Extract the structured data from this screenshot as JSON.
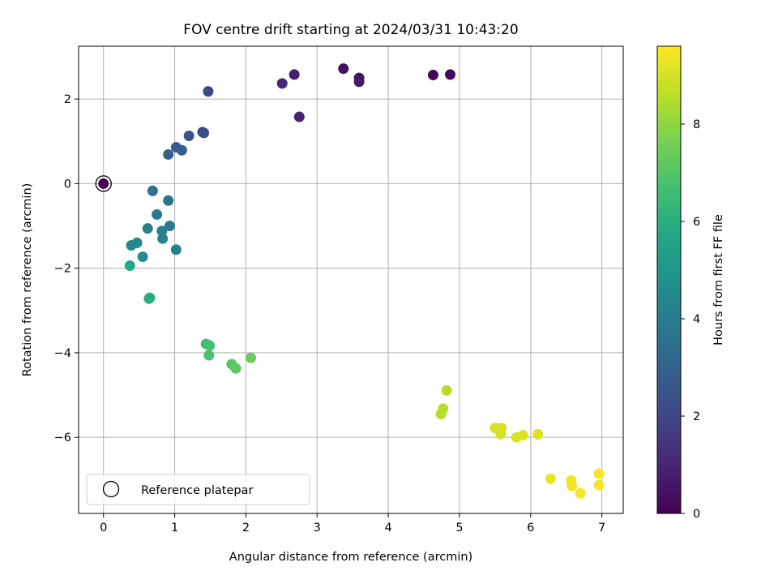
{
  "chart_data": {
    "type": "scatter",
    "title": "FOV centre drift starting at 2024/03/31 10:43:20",
    "xlabel": "Angular distance from reference (arcmin)",
    "ylabel": "Rotation from reference (arcmin)",
    "xlim": [
      -0.35,
      7.3
    ],
    "ylim": [
      -7.8,
      3.25
    ],
    "xticks": [
      0,
      1,
      2,
      3,
      4,
      5,
      6,
      7
    ],
    "yticks": [
      -6,
      -4,
      -2,
      0,
      2
    ],
    "grid": true,
    "legend": {
      "position": "bottom-left",
      "entries": [
        "Reference platepar"
      ]
    },
    "colorbar": {
      "label": "Hours from first FF file",
      "range": [
        0,
        9.6
      ],
      "ticks": [
        0,
        2,
        4,
        6,
        8
      ],
      "colormap": "viridis"
    },
    "reference_point": {
      "x": 0,
      "y": 0,
      "label": "Reference platepar"
    },
    "points": [
      {
        "x": 4.63,
        "y": 2.57,
        "t": 0.1
      },
      {
        "x": 4.87,
        "y": 2.58,
        "t": 0.2
      },
      {
        "x": 3.37,
        "y": 2.72,
        "t": 0.4
      },
      {
        "x": 3.59,
        "y": 2.5,
        "t": 0.5
      },
      {
        "x": 3.59,
        "y": 2.41,
        "t": 0.6
      },
      {
        "x": 2.68,
        "y": 2.58,
        "t": 0.8
      },
      {
        "x": 2.75,
        "y": 1.58,
        "t": 0.9
      },
      {
        "x": 2.51,
        "y": 2.37,
        "t": 1.1
      },
      {
        "x": 1.47,
        "y": 2.18,
        "t": 2.0
      },
      {
        "x": 1.39,
        "y": 1.22,
        "t": 2.2
      },
      {
        "x": 1.41,
        "y": 1.2,
        "t": 2.3
      },
      {
        "x": 1.2,
        "y": 1.13,
        "t": 2.5
      },
      {
        "x": 1.02,
        "y": 0.86,
        "t": 2.7
      },
      {
        "x": 1.1,
        "y": 0.79,
        "t": 2.8
      },
      {
        "x": 0.91,
        "y": 0.69,
        "t": 3.0
      },
      {
        "x": 0.69,
        "y": -0.17,
        "t": 3.6
      },
      {
        "x": 0.91,
        "y": -0.4,
        "t": 3.7
      },
      {
        "x": 0.75,
        "y": -0.73,
        "t": 3.9
      },
      {
        "x": 0.93,
        "y": -1.0,
        "t": 3.9
      },
      {
        "x": 0.62,
        "y": -1.06,
        "t": 4.1
      },
      {
        "x": 0.82,
        "y": -1.12,
        "t": 4.1
      },
      {
        "x": 0.83,
        "y": -1.3,
        "t": 4.2
      },
      {
        "x": 1.02,
        "y": -1.56,
        "t": 4.2
      },
      {
        "x": 0.47,
        "y": -1.4,
        "t": 4.5
      },
      {
        "x": 0.39,
        "y": -1.46,
        "t": 4.5
      },
      {
        "x": 0.55,
        "y": -1.73,
        "t": 4.6
      },
      {
        "x": 0.37,
        "y": -1.94,
        "t": 5.8
      },
      {
        "x": 0.64,
        "y": -2.72,
        "t": 6.0
      },
      {
        "x": 0.65,
        "y": -2.7,
        "t": 6.0
      },
      {
        "x": 1.44,
        "y": -3.79,
        "t": 6.6
      },
      {
        "x": 1.49,
        "y": -3.83,
        "t": 6.7
      },
      {
        "x": 1.48,
        "y": -4.06,
        "t": 6.8
      },
      {
        "x": 1.8,
        "y": -4.27,
        "t": 7.1
      },
      {
        "x": 1.86,
        "y": -4.37,
        "t": 7.2
      },
      {
        "x": 2.07,
        "y": -4.12,
        "t": 7.4
      },
      {
        "x": 4.82,
        "y": -4.89,
        "t": 8.5
      },
      {
        "x": 4.77,
        "y": -5.32,
        "t": 8.6
      },
      {
        "x": 4.74,
        "y": -5.45,
        "t": 8.6
      },
      {
        "x": 5.5,
        "y": -5.78,
        "t": 9.0
      },
      {
        "x": 5.59,
        "y": -5.78,
        "t": 9.0
      },
      {
        "x": 5.58,
        "y": -5.92,
        "t": 9.0
      },
      {
        "x": 5.8,
        "y": -6.0,
        "t": 9.1
      },
      {
        "x": 5.89,
        "y": -5.95,
        "t": 9.1
      },
      {
        "x": 6.1,
        "y": -5.93,
        "t": 9.1
      },
      {
        "x": 6.28,
        "y": -6.98,
        "t": 9.3
      },
      {
        "x": 6.57,
        "y": -7.02,
        "t": 9.4
      },
      {
        "x": 6.58,
        "y": -7.15,
        "t": 9.4
      },
      {
        "x": 6.7,
        "y": -7.32,
        "t": 9.5
      },
      {
        "x": 6.96,
        "y": -6.86,
        "t": 9.5
      },
      {
        "x": 6.96,
        "y": -7.13,
        "t": 9.5
      }
    ]
  }
}
